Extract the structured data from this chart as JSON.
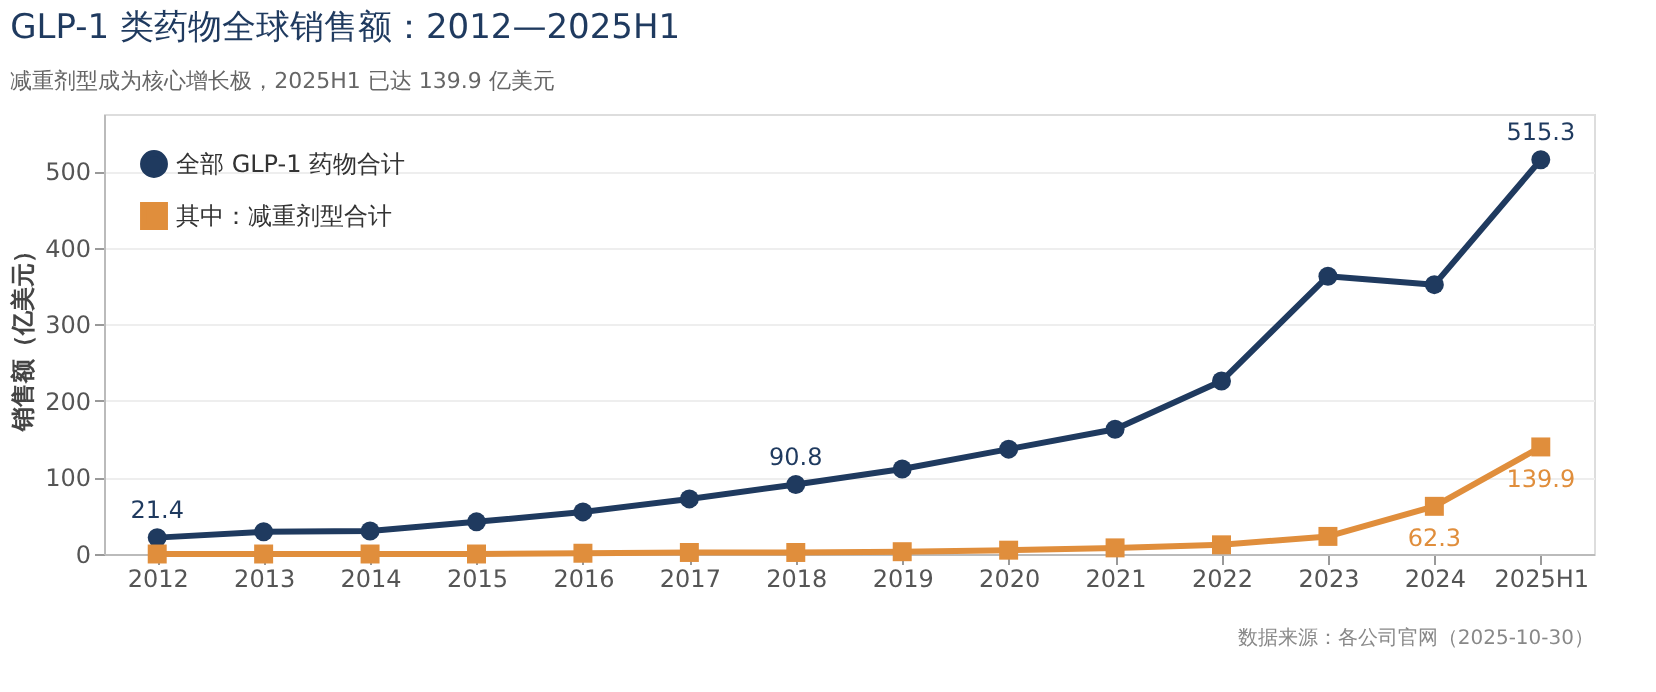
{
  "chart_data": {
    "type": "line",
    "title": "GLP-1 类药物全球销售额：2012—2025H1",
    "subtitle": "减重剂型成为核心增长极，2025H1 已达 139.9 亿美元",
    "ylabel": "销售额（亿美元）",
    "categories": [
      "2012",
      "2013",
      "2014",
      "2015",
      "2016",
      "2017",
      "2018",
      "2019",
      "2020",
      "2021",
      "2022",
      "2023",
      "2024",
      "2025H1"
    ],
    "series": [
      {
        "name": "全部 GLP-1 药物合计",
        "color": "#1f3a5f",
        "marker": "circle",
        "values": [
          21.4,
          29,
          30,
          42,
          55,
          72,
          90.8,
          111,
          137,
          163,
          226,
          363,
          352,
          515.3
        ],
        "value_labels": [
          "21.4",
          null,
          null,
          null,
          null,
          null,
          "90.8",
          null,
          null,
          null,
          null,
          null,
          null,
          "515.3"
        ]
      },
      {
        "name": "其中：减重剂型合计",
        "color": "#e08e3c",
        "marker": "square",
        "values": [
          0,
          0,
          0,
          0,
          1,
          2,
          2,
          3,
          5,
          8,
          12,
          23,
          62.3,
          139.9
        ],
        "value_labels": [
          null,
          null,
          null,
          null,
          null,
          null,
          null,
          null,
          null,
          null,
          null,
          null,
          "62.3",
          "139.9"
        ]
      }
    ],
    "ylim": [
      0,
      575
    ],
    "yticks": [
      0,
      100,
      200,
      300,
      400,
      500
    ],
    "grid": "y",
    "legend": "top left",
    "annotations": [
      "数据来源：各公司官网（2025-10-30）"
    ]
  }
}
